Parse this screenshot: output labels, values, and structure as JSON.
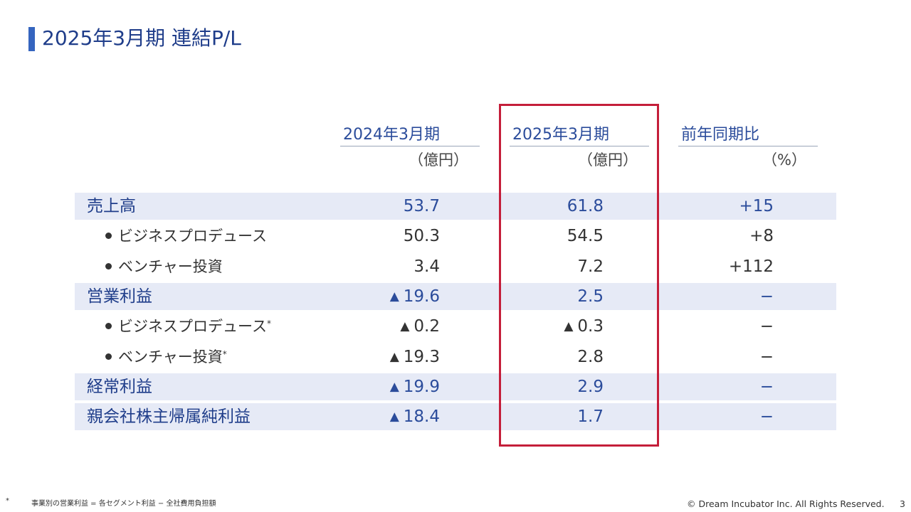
{
  "title": "2025年3月期 連結P/L",
  "columns": [
    {
      "header": "2024年3月期",
      "unit": "（億円）"
    },
    {
      "header": "2025年3月期",
      "unit": "（億円）"
    },
    {
      "header": "前年同期比",
      "unit": "（%）"
    }
  ],
  "triangle": "▲",
  "rows": [
    {
      "label": "売上高",
      "type": "main",
      "values": [
        "53.7",
        "61.8",
        "+15"
      ],
      "neg": [
        false,
        false,
        false
      ]
    },
    {
      "label": "ビジネスプロデュース",
      "type": "sub",
      "mark": "",
      "values": [
        "50.3",
        "54.5",
        "+8"
      ],
      "neg": [
        false,
        false,
        false
      ]
    },
    {
      "label": "ベンチャー投資",
      "type": "sub",
      "mark": "",
      "values": [
        "3.4",
        "7.2",
        "+112"
      ],
      "neg": [
        false,
        false,
        false
      ]
    },
    {
      "label": "営業利益",
      "type": "main",
      "values": [
        "19.6",
        "2.5",
        "−"
      ],
      "neg": [
        true,
        false,
        false
      ]
    },
    {
      "label": "ビジネスプロデュース",
      "type": "sub",
      "mark": "*",
      "values": [
        "0.2",
        "0.3",
        "−"
      ],
      "neg": [
        true,
        true,
        false
      ]
    },
    {
      "label": "ベンチャー投資",
      "type": "sub",
      "mark": "*",
      "values": [
        "19.3",
        "2.8",
        "−"
      ],
      "neg": [
        true,
        false,
        false
      ]
    },
    {
      "label": "経常利益",
      "type": "main",
      "values": [
        "19.9",
        "2.9",
        "−"
      ],
      "neg": [
        true,
        false,
        false
      ]
    },
    {
      "label": "親会社株主帰属純利益",
      "type": "main",
      "values": [
        "18.4",
        "1.7",
        "−"
      ],
      "neg": [
        true,
        false,
        false
      ]
    }
  ],
  "footnote": {
    "mark": "*",
    "text": "事業別の営業利益 = 各セグメント利益 − 全社費用負担額"
  },
  "copyright": "© Dream Incubator Inc. All Rights Reserved.",
  "page_number": "3",
  "colors": {
    "accent": "#3565bf",
    "title": "#1f3d8a",
    "band": "#e6eaf6",
    "highlight": "#c41e3a"
  }
}
